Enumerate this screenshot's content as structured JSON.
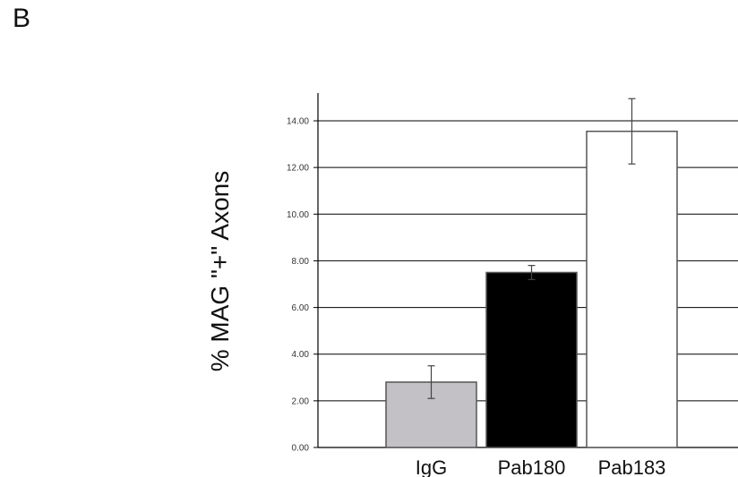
{
  "panel_label": "B",
  "chart_data": {
    "type": "bar",
    "title": "",
    "xlabel": "",
    "ylabel": "% MAG \"+\" Axons",
    "categories": [
      "IgG",
      "Pab180",
      "Pab183"
    ],
    "values": [
      2.8,
      7.5,
      13.55
    ],
    "errors": [
      0.7,
      0.3,
      1.4
    ],
    "bar_colors": [
      "#c3c0c6",
      "#000000",
      "#ffffff"
    ],
    "ylim": [
      0,
      14
    ],
    "yticks": [
      0,
      2,
      4,
      6,
      8,
      10,
      12,
      14
    ],
    "ytick_labels": [
      "0.00",
      "2.00",
      "4.00",
      "6.00",
      "8.00",
      "10.00",
      "12.00",
      "14.00"
    ],
    "grid": true,
    "legend": "none"
  }
}
